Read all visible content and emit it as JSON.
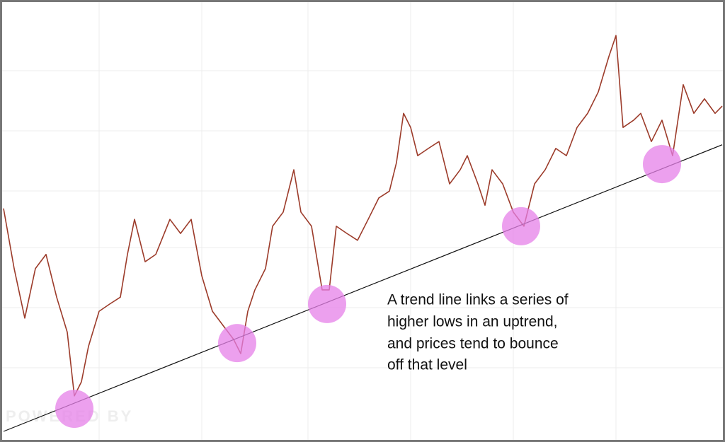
{
  "chart_data": {
    "type": "line",
    "watermark": "POWERED BY",
    "annotation": [
      "A trend line links a series of",
      "higher lows in an uptrend,",
      "and prices tend to bounce",
      "off that level"
    ],
    "x": [
      5,
      20,
      35,
      50,
      65,
      80,
      95,
      105,
      115,
      125,
      140,
      155,
      170,
      180,
      190,
      205,
      220,
      240,
      255,
      270,
      285,
      300,
      315,
      330,
      340,
      350,
      360,
      375,
      385,
      400,
      415,
      425,
      440,
      455,
      465,
      475,
      490,
      505,
      520,
      535,
      550,
      560,
      570,
      580,
      590,
      605,
      620,
      635,
      650,
      660,
      675,
      685,
      695,
      710,
      725,
      740,
      755,
      770,
      785,
      800,
      815,
      830,
      845,
      860,
      870,
      880,
      895,
      905,
      920,
      935,
      950,
      965,
      980,
      995,
      1010,
      1020
    ],
    "series": [
      {
        "color": "#9c3b2a",
        "values": [
          55.3,
          40.4,
          28.1,
          40.4,
          43.9,
          33.3,
          24.6,
          8.8,
          12.3,
          21.1,
          29.8,
          31.6,
          33.3,
          43.9,
          52.6,
          42.1,
          43.9,
          52.6,
          49.1,
          52.6,
          38.6,
          29.8,
          26.3,
          22.8,
          19.3,
          29.8,
          35.1,
          40.4,
          50.9,
          54.4,
          64.9,
          54.4,
          50.9,
          35.1,
          35.1,
          50.9,
          49.1,
          47.4,
          52.6,
          57.9,
          59.6,
          66.7,
          78.9,
          75.4,
          68.4,
          70.2,
          71.9,
          61.4,
          64.9,
          68.4,
          61.4,
          56.1,
          64.9,
          61.4,
          54.4,
          50.9,
          61.4,
          64.9,
          70.2,
          68.4,
          75.4,
          78.9,
          84.2,
          93.0,
          98.2,
          75.4,
          77.2,
          78.9,
          71.9,
          77.2,
          68.4,
          86.0,
          78.9,
          82.5,
          78.9,
          80.7
        ]
      }
    ],
    "trend_line": {
      "x": [
        5,
        1020
      ],
      "y": [
        0,
        71.1
      ],
      "color": "#111111"
    },
    "highlights": {
      "x": [
        105,
        335,
        462,
        736,
        935
      ],
      "y": [
        5.6,
        21.9,
        31.6,
        50.9,
        66.3
      ],
      "color": "#e680e8"
    },
    "xlim": [
      0,
      1024
    ],
    "ylim": [
      0,
      100
    ]
  }
}
